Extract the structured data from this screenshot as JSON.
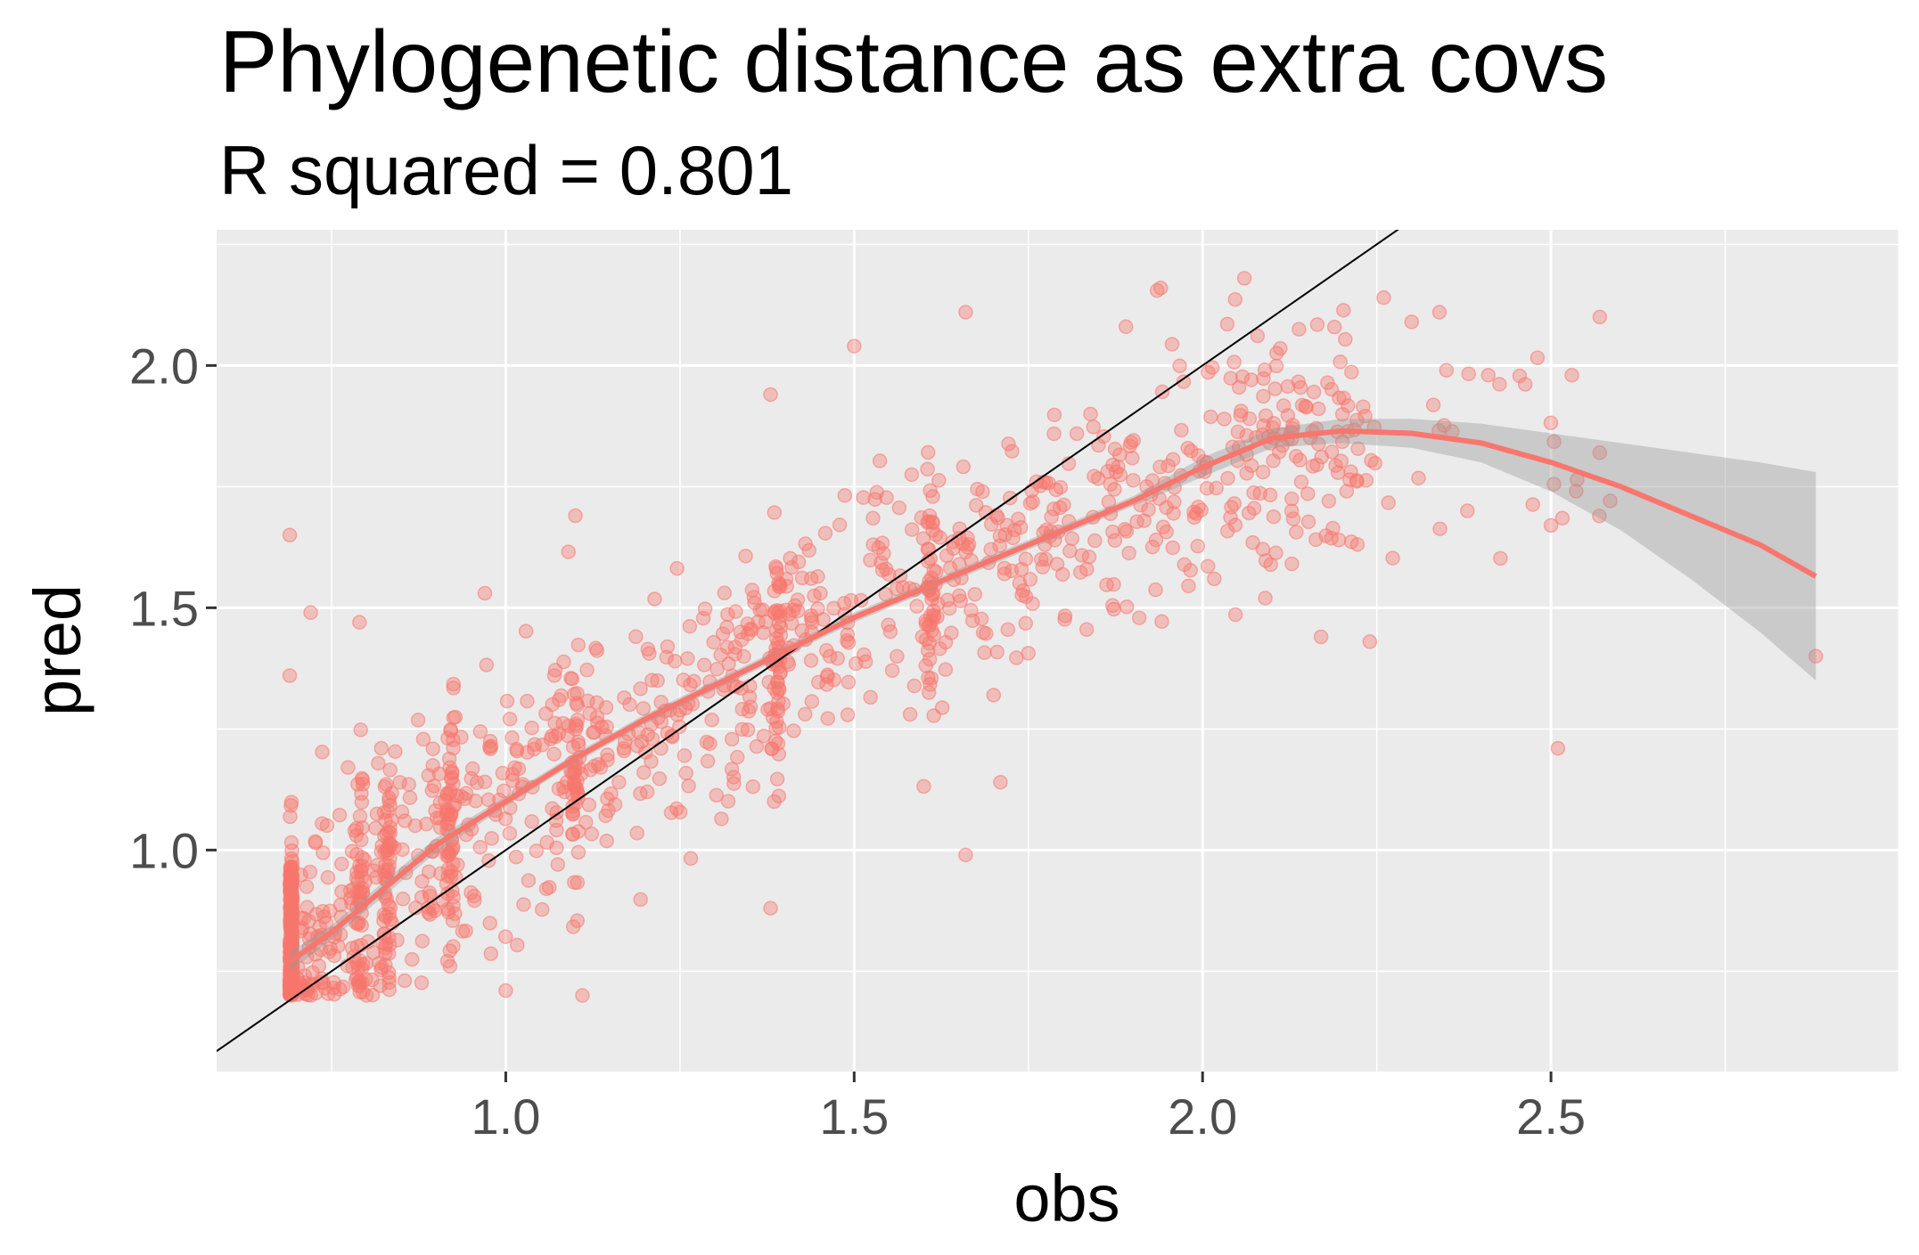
{
  "chart_data": {
    "type": "scatter",
    "title": "Phylogenetic distance as extra covs",
    "subtitle": "R squared = 0.801",
    "xlabel": "obs",
    "ylabel": "pred",
    "xlim": [
      0.585,
      3.0
    ],
    "ylim": [
      0.543,
      2.28
    ],
    "x_ticks": [
      1.0,
      1.5,
      2.0,
      2.5
    ],
    "x_tick_labels": [
      "1.0",
      "1.5",
      "2.0",
      "2.5"
    ],
    "y_ticks": [
      1.0,
      1.5,
      2.0
    ],
    "y_tick_labels": [
      "1.0",
      "1.5",
      "2.0"
    ],
    "grid": true,
    "legend": "none",
    "colors": {
      "points": "#f8766d",
      "smooth_line": "#f8766d",
      "confidence_band": "#999999",
      "reference_line": "#000000",
      "panel_background": "#ebebeb",
      "grid": "#ffffff"
    },
    "reference_line": {
      "intercept": 0,
      "slope": 1
    },
    "smooth_curve": [
      [
        0.69,
        0.77
      ],
      [
        0.75,
        0.83
      ],
      [
        0.8,
        0.89
      ],
      [
        0.85,
        0.95
      ],
      [
        0.9,
        1.01
      ],
      [
        1.0,
        1.1
      ],
      [
        1.1,
        1.19
      ],
      [
        1.2,
        1.27
      ],
      [
        1.3,
        1.34
      ],
      [
        1.4,
        1.41
      ],
      [
        1.5,
        1.48
      ],
      [
        1.6,
        1.54
      ],
      [
        1.7,
        1.6
      ],
      [
        1.8,
        1.66
      ],
      [
        1.9,
        1.72
      ],
      [
        2.0,
        1.79
      ],
      [
        2.1,
        1.85
      ],
      [
        2.2,
        1.865
      ],
      [
        2.3,
        1.86
      ],
      [
        2.4,
        1.84
      ],
      [
        2.5,
        1.8
      ],
      [
        2.6,
        1.75
      ],
      [
        2.7,
        1.69
      ],
      [
        2.8,
        1.63
      ],
      [
        2.88,
        1.565
      ]
    ],
    "confidence_band": [
      [
        0.69,
        0.75,
        0.79
      ],
      [
        0.75,
        0.815,
        0.845
      ],
      [
        0.8,
        0.875,
        0.905
      ],
      [
        0.85,
        0.935,
        0.965
      ],
      [
        0.9,
        0.995,
        1.025
      ],
      [
        1.0,
        1.09,
        1.11
      ],
      [
        1.1,
        1.18,
        1.2
      ],
      [
        1.2,
        1.26,
        1.28
      ],
      [
        1.3,
        1.33,
        1.35
      ],
      [
        1.4,
        1.4,
        1.42
      ],
      [
        1.5,
        1.47,
        1.49
      ],
      [
        1.6,
        1.53,
        1.55
      ],
      [
        1.7,
        1.59,
        1.61
      ],
      [
        1.8,
        1.65,
        1.67
      ],
      [
        1.9,
        1.71,
        1.73
      ],
      [
        2.0,
        1.77,
        1.81
      ],
      [
        2.1,
        1.83,
        1.87
      ],
      [
        2.2,
        1.84,
        1.89
      ],
      [
        2.3,
        1.83,
        1.89
      ],
      [
        2.4,
        1.8,
        1.88
      ],
      [
        2.5,
        1.74,
        1.86
      ],
      [
        2.6,
        1.66,
        1.84
      ],
      [
        2.7,
        1.56,
        1.82
      ],
      [
        2.8,
        1.45,
        1.8
      ],
      [
        2.88,
        1.35,
        1.78
      ]
    ],
    "points": {
      "count": 1500,
      "note_visible": "",
      "samples": [
        [
          0.69,
          1.65
        ],
        [
          0.69,
          1.36
        ],
        [
          0.69,
          0.72
        ],
        [
          0.72,
          1.49
        ],
        [
          0.79,
          1.47
        ],
        [
          0.97,
          1.53
        ],
        [
          1.1,
          1.69
        ],
        [
          1.38,
          1.94
        ],
        [
          1.5,
          2.04
        ],
        [
          1.66,
          2.11
        ],
        [
          1.89,
          2.08
        ],
        [
          1.94,
          2.16
        ],
        [
          2.06,
          2.18
        ],
        [
          2.26,
          2.14
        ],
        [
          2.3,
          2.09
        ],
        [
          2.57,
          2.1
        ],
        [
          2.53,
          1.98
        ],
        [
          2.41,
          1.98
        ],
        [
          2.35,
          1.99
        ],
        [
          2.57,
          1.82
        ],
        [
          2.5,
          1.67
        ],
        [
          2.38,
          1.7
        ],
        [
          2.09,
          1.52
        ],
        [
          2.17,
          1.44
        ],
        [
          2.24,
          1.43
        ],
        [
          2.51,
          1.21
        ],
        [
          2.88,
          1.4
        ],
        [
          1.66,
          0.99
        ],
        [
          1.71,
          1.14
        ],
        [
          1.38,
          0.88
        ],
        [
          1.11,
          0.7
        ],
        [
          0.92,
          0.76
        ],
        [
          0.82,
          0.72
        ],
        [
          0.8,
          0.7
        ],
        [
          1.0,
          0.71
        ]
      ]
    }
  }
}
